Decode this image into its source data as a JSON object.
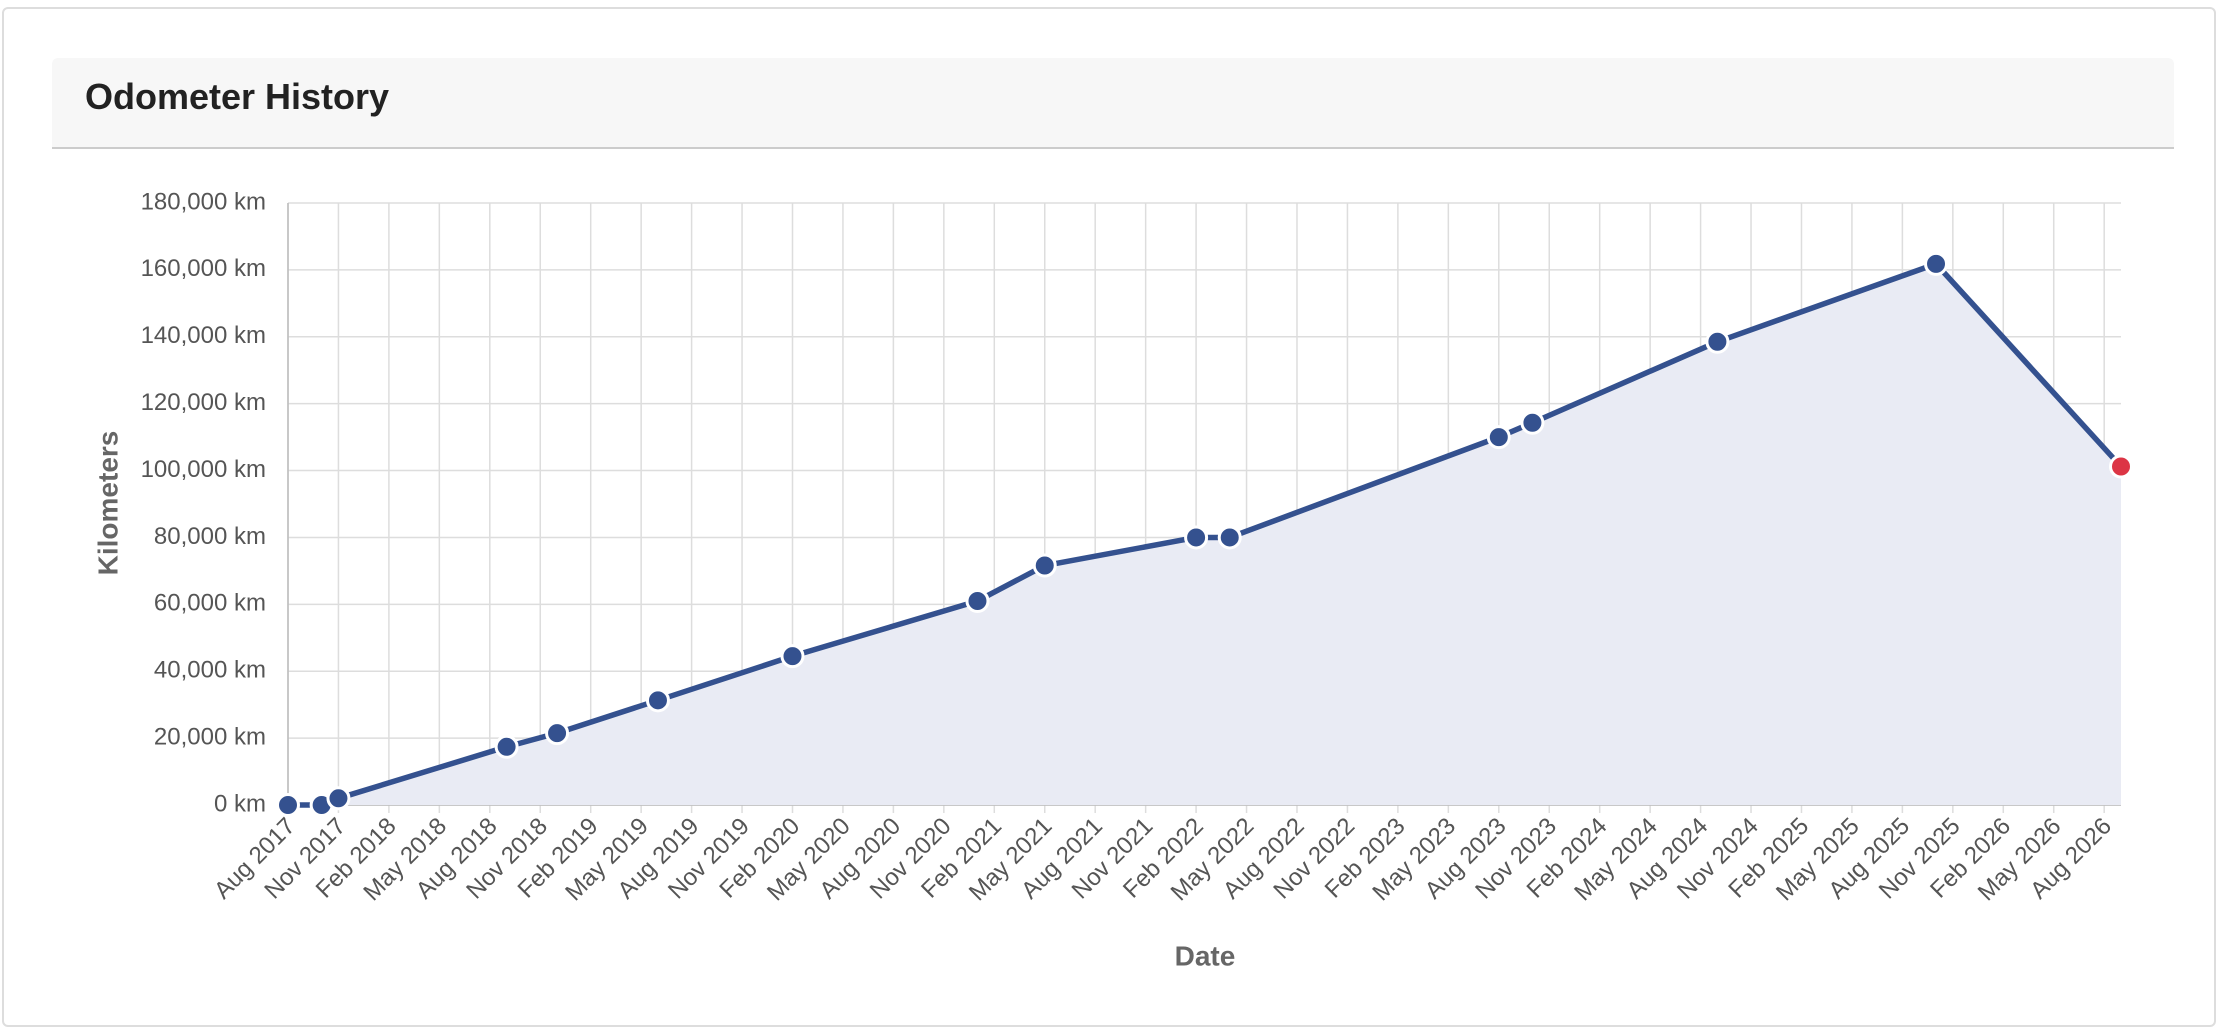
{
  "chart_data": {
    "type": "line",
    "title": "Odometer History",
    "xlabel": "Date",
    "ylabel": "Kilometers",
    "x": [
      "2017-08",
      "2017-10",
      "2017-11",
      "2018-09",
      "2018-12",
      "2019-06",
      "2020-02",
      "2021-01",
      "2021-05",
      "2022-02",
      "2022-04",
      "2023-08",
      "2023-10",
      "2024-09",
      "2025-10",
      "2026-09"
    ],
    "series": [
      {
        "name": "Odometer",
        "color": "#34518f",
        "area_color": "#e9ebf4",
        "last_point_color": "#dc3545",
        "values": [
          0,
          0,
          2000,
          17400,
          21500,
          31300,
          44500,
          61000,
          71600,
          80000,
          80000,
          110000,
          114300,
          138500,
          161800,
          101200
        ]
      }
    ],
    "xlim": [
      "2017-08",
      "2026-09"
    ],
    "xticks": [
      {
        "value": "2017-08",
        "label": "Aug 2017"
      },
      {
        "value": "2017-11",
        "label": "Nov 2017"
      },
      {
        "value": "2018-02",
        "label": "Feb 2018"
      },
      {
        "value": "2018-05",
        "label": "May 2018"
      },
      {
        "value": "2018-08",
        "label": "Aug 2018"
      },
      {
        "value": "2018-11",
        "label": "Nov 2018"
      },
      {
        "value": "2019-02",
        "label": "Feb 2019"
      },
      {
        "value": "2019-05",
        "label": "May 2019"
      },
      {
        "value": "2019-08",
        "label": "Aug 2019"
      },
      {
        "value": "2019-11",
        "label": "Nov 2019"
      },
      {
        "value": "2020-02",
        "label": "Feb 2020"
      },
      {
        "value": "2020-05",
        "label": "May 2020"
      },
      {
        "value": "2020-08",
        "label": "Aug 2020"
      },
      {
        "value": "2020-11",
        "label": "Nov 2020"
      },
      {
        "value": "2021-02",
        "label": "Feb 2021"
      },
      {
        "value": "2021-05",
        "label": "May 2021"
      },
      {
        "value": "2021-08",
        "label": "Aug 2021"
      },
      {
        "value": "2021-11",
        "label": "Nov 2021"
      },
      {
        "value": "2022-02",
        "label": "Feb 2022"
      },
      {
        "value": "2022-05",
        "label": "May 2022"
      },
      {
        "value": "2022-08",
        "label": "Aug 2022"
      },
      {
        "value": "2022-11",
        "label": "Nov 2022"
      },
      {
        "value": "2023-02",
        "label": "Feb 2023"
      },
      {
        "value": "2023-05",
        "label": "May 2023"
      },
      {
        "value": "2023-08",
        "label": "Aug 2023"
      },
      {
        "value": "2023-11",
        "label": "Nov 2023"
      },
      {
        "value": "2024-02",
        "label": "Feb 2024"
      },
      {
        "value": "2024-05",
        "label": "May 2024"
      },
      {
        "value": "2024-08",
        "label": "Aug 2024"
      },
      {
        "value": "2024-11",
        "label": "Nov 2024"
      },
      {
        "value": "2025-02",
        "label": "Feb 2025"
      },
      {
        "value": "2025-05",
        "label": "May 2025"
      },
      {
        "value": "2025-08",
        "label": "Aug 2025"
      },
      {
        "value": "2025-11",
        "label": "Nov 2025"
      },
      {
        "value": "2026-02",
        "label": "Feb 2026"
      },
      {
        "value": "2026-05",
        "label": "May 2026"
      },
      {
        "value": "2026-08",
        "label": "Aug 2026"
      }
    ],
    "ylim": [
      0,
      180000
    ],
    "yticks": [
      {
        "value": 0,
        "label": "0 km"
      },
      {
        "value": 20000,
        "label": "20,000 km"
      },
      {
        "value": 40000,
        "label": "40,000 km"
      },
      {
        "value": 60000,
        "label": "60,000 km"
      },
      {
        "value": 80000,
        "label": "80,000 km"
      },
      {
        "value": 100000,
        "label": "100,000 km"
      },
      {
        "value": 120000,
        "label": "120,000 km"
      },
      {
        "value": 140000,
        "label": "140,000 km"
      },
      {
        "value": 160000,
        "label": "160,000 km"
      },
      {
        "value": 180000,
        "label": "180,000 km"
      }
    ],
    "grid": true
  }
}
